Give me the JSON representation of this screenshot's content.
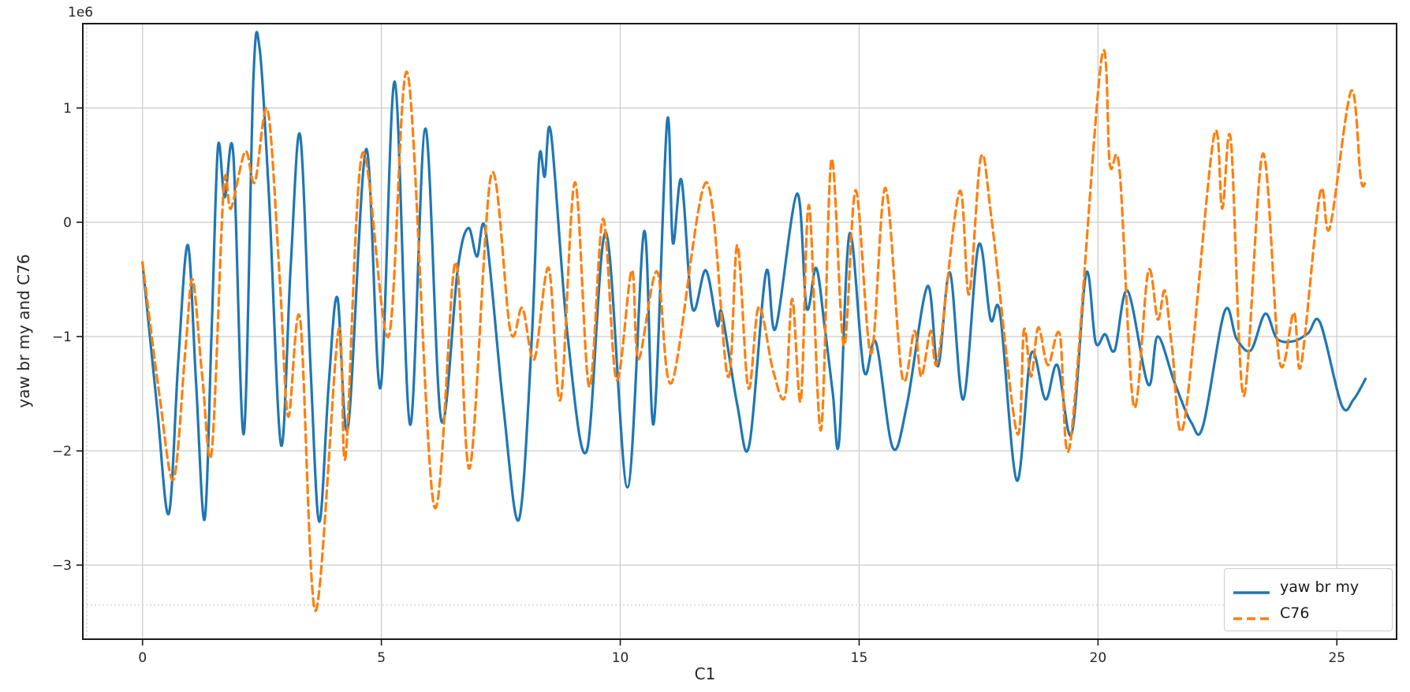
{
  "figure": {
    "background": "#ffffff"
  },
  "axes": {
    "xlabel": "C1",
    "ylabel": "yaw br my and C76",
    "offset_text": "1e6",
    "x_tick_labels": [
      "0",
      "5",
      "10",
      "15",
      "20",
      "25"
    ],
    "x_ticks": [
      0,
      5,
      10,
      15,
      20,
      25
    ],
    "y_tick_labels": [
      "1",
      "0",
      "−1",
      "−2",
      "−3"
    ],
    "y_ticks": [
      1,
      0,
      -1,
      -2,
      -3
    ],
    "grid_color": "#cccccc",
    "spine_color": "#1a1a1a",
    "text_color": "#262626",
    "dotted_guides": {
      "x": -1.17,
      "y_1e6": -3.35,
      "color": "#c9c9c9"
    }
  },
  "legend": {
    "border_color": "#cccccc",
    "entries": [
      {
        "label": "yaw br my",
        "style": "solid",
        "color": "#1f77b4"
      },
      {
        "label": "C76",
        "style": "dashed",
        "color": "#ff7f0e"
      }
    ]
  },
  "chart_data": {
    "type": "line",
    "title": "",
    "xlabel": "C1",
    "ylabel": "yaw br my and C76",
    "y_unit_multiplier": 1000000,
    "xlim": [
      -1.25,
      26.25
    ],
    "ylim_1e6": [
      -3.648,
      1.738
    ],
    "grid": true,
    "legend_position": "lower right",
    "series": [
      {
        "name": "yaw br my",
        "color": "#1f77b4",
        "linestyle": "solid",
        "linewidth": 3.2,
        "points_x_y1e6": [
          [
            0.0,
            -0.35
          ],
          [
            0.3,
            -1.6
          ],
          [
            0.55,
            -2.55
          ],
          [
            0.75,
            -1.2
          ],
          [
            0.95,
            -0.2
          ],
          [
            1.12,
            -1.4
          ],
          [
            1.3,
            -2.6
          ],
          [
            1.45,
            -0.9
          ],
          [
            1.58,
            0.66
          ],
          [
            1.72,
            0.22
          ],
          [
            1.9,
            0.6
          ],
          [
            2.12,
            -1.85
          ],
          [
            2.32,
            1.25
          ],
          [
            2.45,
            1.52
          ],
          [
            2.65,
            0.2
          ],
          [
            2.9,
            -1.95
          ],
          [
            3.1,
            -0.4
          ],
          [
            3.3,
            0.76
          ],
          [
            3.52,
            -1.3
          ],
          [
            3.7,
            -2.62
          ],
          [
            3.9,
            -1.4
          ],
          [
            4.08,
            -0.66
          ],
          [
            4.3,
            -1.8
          ],
          [
            4.68,
            0.64
          ],
          [
            4.98,
            -1.45
          ],
          [
            5.28,
            1.23
          ],
          [
            5.6,
            -1.77
          ],
          [
            5.92,
            0.82
          ],
          [
            6.25,
            -1.73
          ],
          [
            6.6,
            -0.4
          ],
          [
            6.82,
            -0.05
          ],
          [
            7.0,
            -0.3
          ],
          [
            7.18,
            -0.07
          ],
          [
            7.55,
            -1.6
          ],
          [
            7.88,
            -2.6
          ],
          [
            8.15,
            -1.0
          ],
          [
            8.3,
            0.55
          ],
          [
            8.42,
            0.4
          ],
          [
            8.55,
            0.78
          ],
          [
            8.9,
            -1.0
          ],
          [
            9.3,
            -2.0
          ],
          [
            9.7,
            -0.09
          ],
          [
            10.15,
            -2.32
          ],
          [
            10.5,
            -0.08
          ],
          [
            10.7,
            -1.76
          ],
          [
            10.98,
            0.88
          ],
          [
            11.1,
            -0.18
          ],
          [
            11.28,
            0.37
          ],
          [
            11.51,
            -0.75
          ],
          [
            11.79,
            -0.42
          ],
          [
            12.03,
            -0.9
          ],
          [
            12.13,
            -0.8
          ],
          [
            12.45,
            -1.6
          ],
          [
            12.7,
            -1.95
          ],
          [
            13.05,
            -0.44
          ],
          [
            13.25,
            -0.93
          ],
          [
            13.7,
            0.25
          ],
          [
            13.9,
            -0.75
          ],
          [
            14.1,
            -0.4
          ],
          [
            14.28,
            -0.92
          ],
          [
            14.45,
            -1.5
          ],
          [
            14.58,
            -1.92
          ],
          [
            14.8,
            -0.1
          ],
          [
            15.1,
            -1.3
          ],
          [
            15.35,
            -1.05
          ],
          [
            15.7,
            -1.97
          ],
          [
            16.0,
            -1.6
          ],
          [
            16.43,
            -0.56
          ],
          [
            16.65,
            -1.26
          ],
          [
            16.9,
            -0.44
          ],
          [
            17.18,
            -1.55
          ],
          [
            17.5,
            -0.2
          ],
          [
            17.75,
            -0.85
          ],
          [
            17.95,
            -0.8
          ],
          [
            18.3,
            -2.26
          ],
          [
            18.6,
            -1.15
          ],
          [
            18.9,
            -1.55
          ],
          [
            19.15,
            -1.25
          ],
          [
            19.45,
            -1.85
          ],
          [
            19.75,
            -0.45
          ],
          [
            19.95,
            -1.05
          ],
          [
            20.15,
            -0.98
          ],
          [
            20.35,
            -1.12
          ],
          [
            20.62,
            -0.6
          ],
          [
            21.05,
            -1.42
          ],
          [
            21.25,
            -1.0
          ],
          [
            21.6,
            -1.4
          ],
          [
            21.95,
            -1.75
          ],
          [
            22.2,
            -1.78
          ],
          [
            22.65,
            -0.78
          ],
          [
            22.9,
            -1.02
          ],
          [
            23.2,
            -1.12
          ],
          [
            23.5,
            -0.8
          ],
          [
            23.75,
            -1.02
          ],
          [
            24.1,
            -1.04
          ],
          [
            24.4,
            -0.97
          ],
          [
            24.65,
            -0.88
          ],
          [
            25.1,
            -1.6
          ],
          [
            25.35,
            -1.55
          ],
          [
            25.6,
            -1.37
          ]
        ]
      },
      {
        "name": "C76",
        "color": "#ff7f0e",
        "linestyle": "dashed",
        "linewidth": 3.2,
        "points_x_y1e6": [
          [
            0.0,
            -0.35
          ],
          [
            0.35,
            -1.5
          ],
          [
            0.65,
            -2.25
          ],
          [
            0.9,
            -1.1
          ],
          [
            1.05,
            -0.5
          ],
          [
            1.25,
            -1.35
          ],
          [
            1.45,
            -2.0
          ],
          [
            1.7,
            0.3
          ],
          [
            1.85,
            0.12
          ],
          [
            2.15,
            0.62
          ],
          [
            2.35,
            0.35
          ],
          [
            2.62,
            0.98
          ],
          [
            2.88,
            -0.55
          ],
          [
            3.05,
            -1.7
          ],
          [
            3.3,
            -0.85
          ],
          [
            3.62,
            -3.4
          ],
          [
            4.1,
            -0.95
          ],
          [
            4.25,
            -2.05
          ],
          [
            4.6,
            0.6
          ],
          [
            5.15,
            -1.0
          ],
          [
            5.55,
            1.3
          ],
          [
            6.1,
            -2.48
          ],
          [
            6.55,
            -0.35
          ],
          [
            6.85,
            -2.15
          ],
          [
            7.3,
            0.42
          ],
          [
            7.7,
            -0.95
          ],
          [
            7.95,
            -0.75
          ],
          [
            8.2,
            -1.2
          ],
          [
            8.5,
            -0.4
          ],
          [
            8.75,
            -1.55
          ],
          [
            9.05,
            0.35
          ],
          [
            9.35,
            -1.44
          ],
          [
            9.64,
            0.03
          ],
          [
            9.92,
            -1.38
          ],
          [
            10.24,
            -0.42
          ],
          [
            10.38,
            -1.2
          ],
          [
            10.77,
            -0.43
          ],
          [
            11.08,
            -1.4
          ],
          [
            11.8,
            0.35
          ],
          [
            12.25,
            -1.35
          ],
          [
            12.45,
            -0.2
          ],
          [
            12.68,
            -1.45
          ],
          [
            12.9,
            -0.74
          ],
          [
            13.2,
            -1.3
          ],
          [
            13.45,
            -1.52
          ],
          [
            13.6,
            -0.67
          ],
          [
            13.78,
            -1.56
          ],
          [
            13.95,
            0.15
          ],
          [
            14.2,
            -1.82
          ],
          [
            14.42,
            0.55
          ],
          [
            14.68,
            -1.08
          ],
          [
            14.93,
            0.28
          ],
          [
            15.25,
            -1.15
          ],
          [
            15.55,
            0.3
          ],
          [
            15.9,
            -1.35
          ],
          [
            16.16,
            -0.95
          ],
          [
            16.3,
            -1.35
          ],
          [
            16.5,
            -0.95
          ],
          [
            16.65,
            -1.2
          ],
          [
            17.1,
            0.27
          ],
          [
            17.3,
            -0.63
          ],
          [
            17.55,
            0.57
          ],
          [
            17.78,
            0.0
          ],
          [
            18.3,
            -1.84
          ],
          [
            18.45,
            -0.94
          ],
          [
            18.6,
            -1.35
          ],
          [
            18.75,
            -0.92
          ],
          [
            18.95,
            -1.25
          ],
          [
            19.2,
            -0.98
          ],
          [
            19.42,
            -1.93
          ],
          [
            20.07,
            1.42
          ],
          [
            20.25,
            0.5
          ],
          [
            20.45,
            0.46
          ],
          [
            20.75,
            -1.61
          ],
          [
            21.05,
            -0.43
          ],
          [
            21.25,
            -0.85
          ],
          [
            21.4,
            -0.6
          ],
          [
            21.55,
            -1.1
          ],
          [
            21.8,
            -1.76
          ],
          [
            22.42,
            0.74
          ],
          [
            22.6,
            0.12
          ],
          [
            22.78,
            0.72
          ],
          [
            23.05,
            -1.52
          ],
          [
            23.45,
            0.6
          ],
          [
            23.8,
            -1.22
          ],
          [
            24.1,
            -0.79
          ],
          [
            24.25,
            -1.25
          ],
          [
            24.65,
            0.26
          ],
          [
            24.85,
            -0.05
          ],
          [
            25.3,
            1.15
          ],
          [
            25.5,
            0.38
          ],
          [
            25.6,
            0.35
          ]
        ]
      }
    ]
  }
}
